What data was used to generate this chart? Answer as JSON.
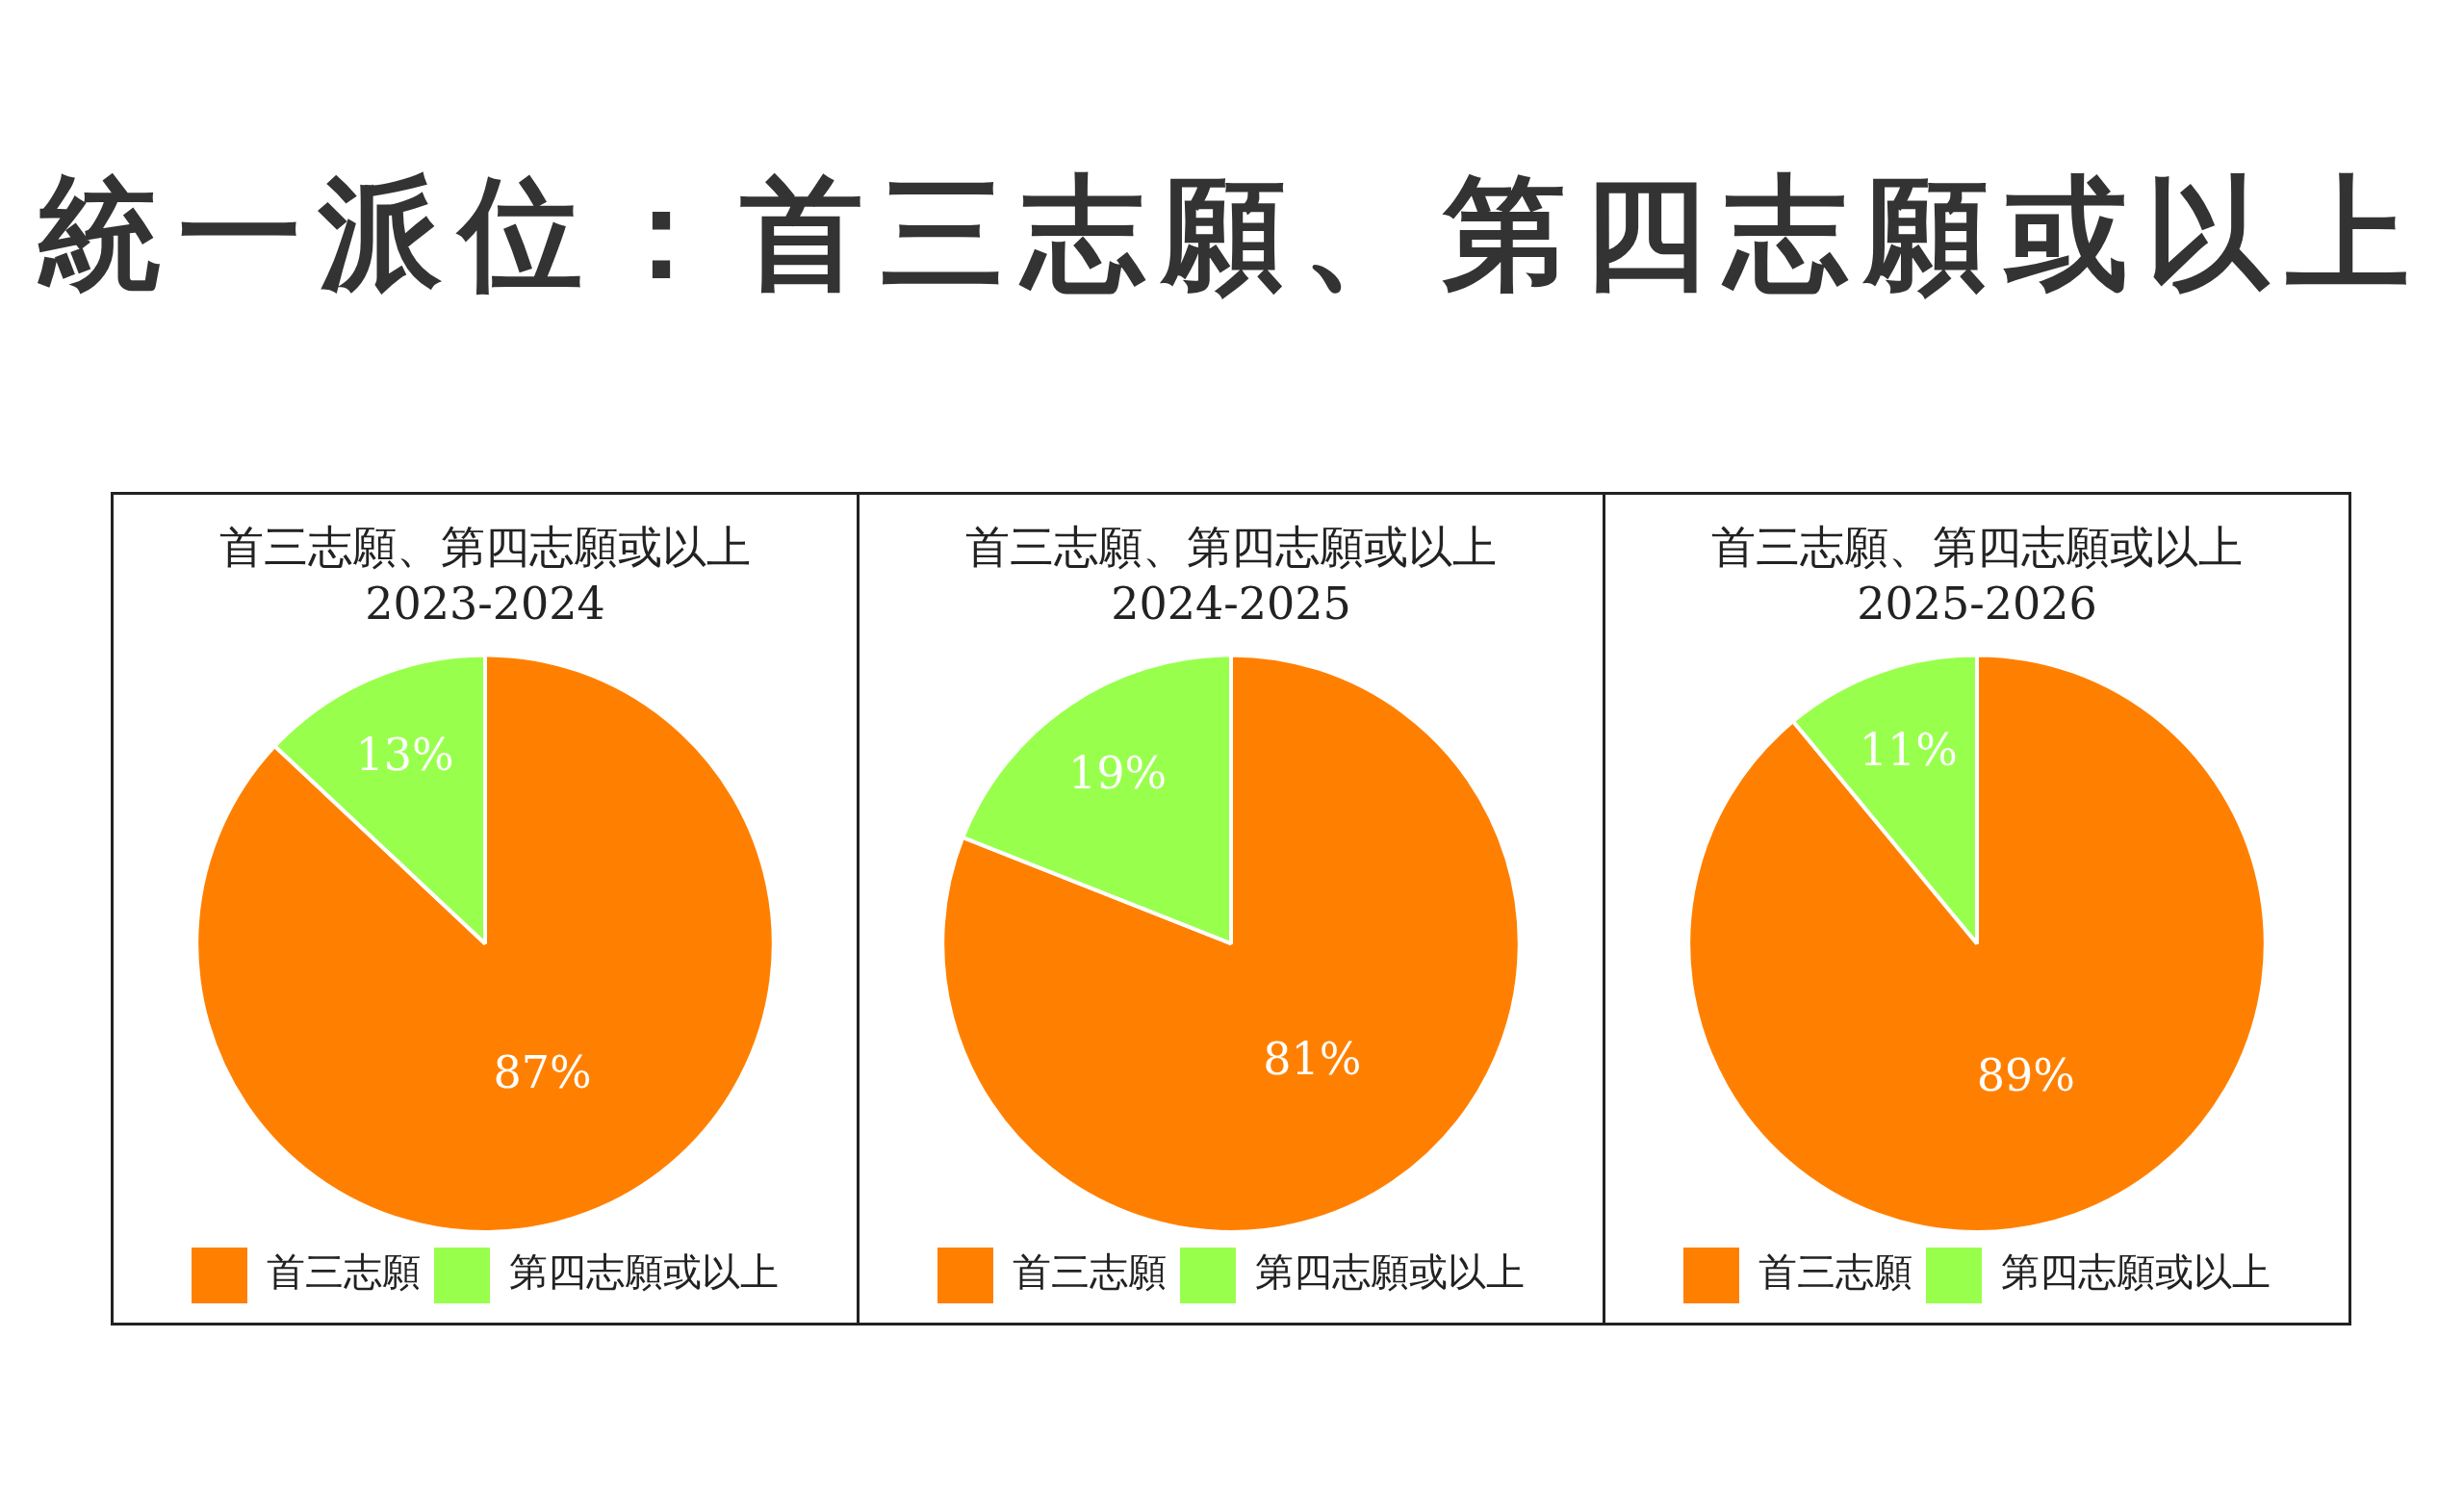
{
  "chart_data": [
    {
      "type": "other",
      "title": "統一派位：首三志願、第四志願或以上"
    },
    {
      "type": "pie",
      "title": "首三志願、第四志願或以上",
      "subtitle": "2023-2024",
      "categories": [
        "首三志願",
        "第四志願或以上"
      ],
      "values": [
        87,
        13
      ],
      "colors": [
        "#ff8000",
        "#99ff4d"
      ],
      "value_labels": [
        "87%",
        "13%"
      ],
      "legend": "bottom"
    },
    {
      "type": "pie",
      "title": "首三志願、第四志願或以上",
      "subtitle": "2024-2025",
      "categories": [
        "首三志願",
        "第四志願或以上"
      ],
      "values": [
        81,
        19
      ],
      "colors": [
        "#ff8000",
        "#99ff4d"
      ],
      "value_labels": [
        "81%",
        "19%"
      ],
      "legend": "bottom"
    },
    {
      "type": "pie",
      "title": "首三志願、第四志願或以上",
      "subtitle": "2025-2026",
      "categories": [
        "首三志願",
        "第四志願或以上"
      ],
      "values": [
        89,
        11
      ],
      "colors": [
        "#ff8000",
        "#99ff4d"
      ],
      "value_labels": [
        "89%",
        "11%"
      ],
      "legend": "bottom"
    }
  ]
}
